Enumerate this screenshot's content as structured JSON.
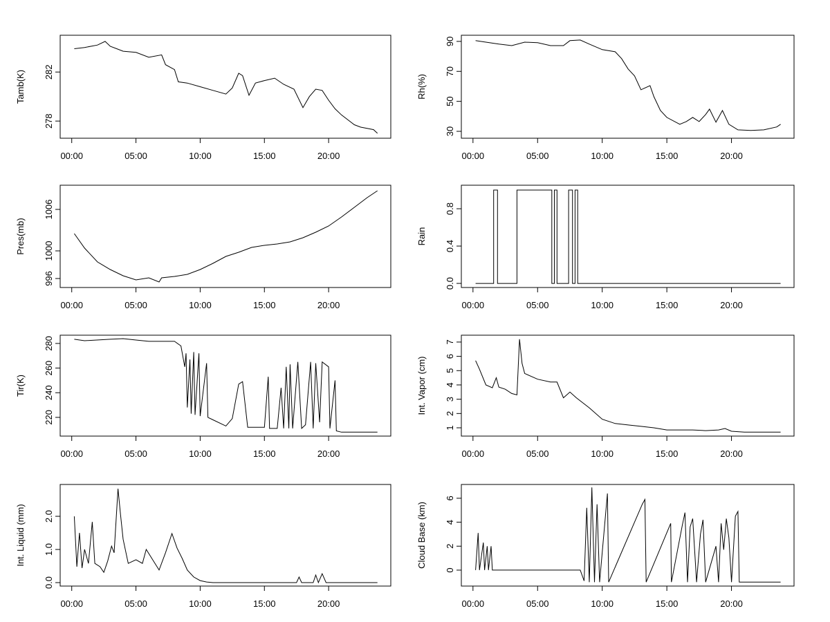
{
  "chart_data": [
    {
      "type": "line",
      "ylabel": "Tamb(K)",
      "xlim": [
        -0.9,
        24.84
      ],
      "ylim": [
        276.6,
        285.0
      ],
      "xticks": [
        {
          "value": 0,
          "label": "00:00"
        },
        {
          "value": 5,
          "label": "05:00"
        },
        {
          "value": 10,
          "label": "10:00"
        },
        {
          "value": 15,
          "label": "15:00"
        },
        {
          "value": 20,
          "label": "20:00"
        }
      ],
      "yticks": [
        278,
        282
      ],
      "color": "#000000",
      "x": [
        0.2,
        1,
        2,
        2.6,
        3,
        3.5,
        4,
        5,
        6,
        7,
        7.3,
        8,
        8.3,
        9,
        10,
        11,
        12,
        12.5,
        13,
        13.3,
        13.8,
        14.3,
        15,
        15.8,
        16.5,
        17.3,
        18,
        18.5,
        19,
        19.5,
        20,
        20.5,
        21,
        22,
        22.5,
        23,
        23.5,
        23.8
      ],
      "values": [
        283.9,
        284.0,
        284.2,
        284.5,
        284.1,
        283.9,
        283.7,
        283.6,
        283.2,
        283.4,
        282.6,
        282.2,
        281.2,
        281.1,
        280.8,
        280.5,
        280.2,
        280.7,
        281.9,
        281.7,
        280.1,
        281.1,
        281.3,
        281.5,
        281.0,
        280.6,
        279.1,
        280.0,
        280.6,
        280.5,
        279.7,
        279.0,
        278.5,
        277.7,
        277.5,
        277.4,
        277.3,
        277.0
      ]
    },
    {
      "type": "line",
      "ylabel": "Rh(%)",
      "xlim": [
        -0.9,
        24.84
      ],
      "ylim": [
        25.4,
        94.1
      ],
      "xticks": [
        {
          "value": 0,
          "label": "00:00"
        },
        {
          "value": 5,
          "label": "05:00"
        },
        {
          "value": 10,
          "label": "10:00"
        },
        {
          "value": 15,
          "label": "15:00"
        },
        {
          "value": 20,
          "label": "20:00"
        }
      ],
      "yticks": [
        30,
        50,
        70,
        90
      ],
      "color": "#000000",
      "x": [
        0.2,
        1,
        2,
        3,
        4,
        5,
        6,
        7,
        7.5,
        8.3,
        9,
        10,
        11,
        11.5,
        12,
        12.5,
        13,
        13.7,
        14,
        14.5,
        15,
        16,
        16.5,
        17,
        17.5,
        18,
        18.3,
        18.8,
        19.3,
        19.8,
        20.5,
        21.5,
        22.5,
        23.5,
        23.8
      ],
      "values": [
        90.5,
        89.5,
        88.2,
        87.2,
        89.5,
        89.1,
        87.2,
        87.2,
        90.5,
        90.9,
        88.2,
        84.5,
        83.1,
        78.5,
        71.6,
        67,
        57.7,
        60.5,
        53.1,
        43.9,
        39.3,
        34.7,
        36.5,
        39.3,
        36.5,
        41.2,
        44.8,
        36.1,
        43.9,
        34.7,
        31,
        30.6,
        31,
        32.9,
        34.7
      ]
    },
    {
      "type": "line",
      "ylabel": "Pres(mb)",
      "xlim": [
        -0.9,
        24.84
      ],
      "ylim": [
        994.7,
        1009.5
      ],
      "xticks": [
        {
          "value": 0,
          "label": "00:00"
        },
        {
          "value": 5,
          "label": "05:00"
        },
        {
          "value": 10,
          "label": "10:00"
        },
        {
          "value": 15,
          "label": "15:00"
        },
        {
          "value": 20,
          "label": "20:00"
        }
      ],
      "yticks": [
        996,
        1000,
        1006
      ],
      "color": "#000000",
      "x": [
        0.2,
        1,
        2,
        3,
        4,
        5,
        6,
        6.8,
        7,
        8,
        9,
        10,
        11,
        12,
        13,
        14,
        15,
        16,
        17,
        18,
        19,
        20,
        21,
        22,
        23,
        23.8
      ],
      "values": [
        1002.5,
        1000.4,
        998.4,
        997.3,
        996.4,
        995.8,
        996.1,
        995.5,
        996.1,
        996.3,
        996.6,
        997.3,
        998.2,
        999.2,
        999.8,
        1000.5,
        1000.8,
        1001.0,
        1001.3,
        1001.9,
        1002.7,
        1003.6,
        1004.9,
        1006.3,
        1007.7,
        1008.7
      ]
    },
    {
      "type": "line",
      "ylabel": "Rain",
      "xlim": [
        -0.9,
        24.84
      ],
      "ylim": [
        -0.044,
        1.052
      ],
      "xticks": [
        {
          "value": 0,
          "label": "00:00"
        },
        {
          "value": 5,
          "label": "05:00"
        },
        {
          "value": 10,
          "label": "10:00"
        },
        {
          "value": 15,
          "label": "15:00"
        },
        {
          "value": 20,
          "label": "20:00"
        }
      ],
      "yticks": [
        {
          "value": 0,
          "label": "0.0"
        },
        0.4,
        0.8
      ],
      "color": "#000000",
      "x": [
        0.2,
        1.6,
        1.6,
        1.9,
        1.9,
        3.4,
        3.4,
        6.1,
        6.1,
        6.3,
        6.3,
        6.5,
        6.5,
        7.4,
        7.4,
        7.7,
        7.7,
        7.9,
        7.9,
        8.1,
        8.1,
        23.8
      ],
      "values": [
        0,
        0,
        1,
        1,
        0,
        0,
        1,
        1,
        0,
        0,
        1,
        1,
        0,
        0,
        1,
        1,
        0,
        0,
        1,
        1,
        0,
        0
      ]
    },
    {
      "type": "line",
      "ylabel": "Tir(K)",
      "xlim": [
        -0.9,
        24.84
      ],
      "ylim": [
        204.8,
        286.7
      ],
      "xticks": [
        {
          "value": 0,
          "label": "00:00"
        },
        {
          "value": 5,
          "label": "05:00"
        },
        {
          "value": 10,
          "label": "10:00"
        },
        {
          "value": 15,
          "label": "15:00"
        },
        {
          "value": 20,
          "label": "20:00"
        }
      ],
      "yticks": [
        220,
        240,
        260,
        280
      ],
      "color": "#000000",
      "x": [
        0.2,
        1,
        3,
        4,
        5,
        6,
        7,
        8,
        8.5,
        8.8,
        8.9,
        9,
        9.2,
        9.3,
        9.5,
        9.6,
        9.9,
        10.0,
        10.5,
        10.6,
        11,
        12,
        12.5,
        13,
        13.3,
        13.7,
        15,
        15.3,
        15.4,
        16,
        16.3,
        16.5,
        16.7,
        16.9,
        17,
        17.2,
        17.6,
        17.9,
        18.2,
        18.6,
        18.8,
        19.0,
        19.3,
        19.5,
        20.0,
        20.1,
        20.5,
        20.6,
        21,
        23.8
      ],
      "values": [
        283.4,
        282.2,
        283.4,
        283.9,
        282.8,
        281.7,
        281.7,
        281.7,
        278,
        261,
        272,
        228,
        267,
        223,
        273,
        222,
        272,
        221,
        264,
        220,
        218,
        213,
        219,
        247,
        249,
        212,
        212,
        253,
        211,
        211,
        244,
        211,
        261,
        211,
        263,
        211,
        265,
        211,
        214,
        265,
        211,
        264,
        216,
        265,
        261,
        211,
        250,
        209,
        208,
        208
      ]
    },
    {
      "type": "line",
      "ylabel": "Int. Vapor (cm)",
      "xlim": [
        -0.9,
        24.84
      ],
      "ylim": [
        0.42,
        7.48
      ],
      "xticks": [
        {
          "value": 0,
          "label": "00:00"
        },
        {
          "value": 5,
          "label": "05:00"
        },
        {
          "value": 10,
          "label": "10:00"
        },
        {
          "value": 15,
          "label": "15:00"
        },
        {
          "value": 20,
          "label": "20:00"
        }
      ],
      "yticks": [
        1,
        2,
        3,
        4,
        5,
        6,
        7
      ],
      "color": "#000000",
      "x": [
        0.2,
        0.5,
        1,
        1.5,
        1.8,
        2,
        2.5,
        3,
        3.4,
        3.6,
        3.8,
        4,
        5,
        6,
        6.5,
        7,
        7.5,
        8,
        9,
        10,
        11,
        12,
        13,
        14,
        15,
        16,
        17,
        18,
        19,
        19.5,
        20,
        21,
        23.8
      ],
      "values": [
        5.7,
        5.1,
        4.0,
        3.8,
        4.5,
        3.85,
        3.7,
        3.4,
        3.3,
        7.2,
        5.5,
        4.8,
        4.4,
        4.2,
        4.2,
        3.1,
        3.5,
        3.1,
        2.4,
        1.6,
        1.3,
        1.2,
        1.1,
        1.0,
        0.85,
        0.85,
        0.85,
        0.8,
        0.85,
        0.95,
        0.76,
        0.7,
        0.7
      ]
    },
    {
      "type": "line",
      "ylabel": "Int. Liquid (mm)",
      "xlim": [
        -0.9,
        24.84
      ],
      "ylim": [
        -0.104,
        2.96
      ],
      "xticks": [
        {
          "value": 0,
          "label": "00:00"
        },
        {
          "value": 5,
          "label": "05:00"
        },
        {
          "value": 10,
          "label": "10:00"
        },
        {
          "value": 15,
          "label": "15:00"
        },
        {
          "value": 20,
          "label": "20:00"
        }
      ],
      "yticks": [
        {
          "value": 0,
          "label": "0.0"
        },
        {
          "value": 1,
          "label": "1.0"
        },
        {
          "value": 2,
          "label": "2.0"
        }
      ],
      "color": "#000000",
      "x": [
        0.2,
        0.4,
        0.6,
        0.8,
        1.0,
        1.3,
        1.6,
        1.8,
        2.2,
        2.5,
        2.8,
        3.1,
        3.3,
        3.6,
        3.8,
        4.0,
        4.4,
        5,
        5.5,
        5.8,
        6.3,
        6.8,
        7.3,
        7.8,
        8.2,
        8.6,
        9,
        9.5,
        10,
        10.5,
        11,
        17.5,
        17.7,
        17.9,
        18.8,
        19,
        19.2,
        19.5,
        19.8,
        23.8
      ],
      "values": [
        2.0,
        0.48,
        1.5,
        0.44,
        1.0,
        0.58,
        1.83,
        0.58,
        0.48,
        0.31,
        0.65,
        1.1,
        0.9,
        2.83,
        2.04,
        1.31,
        0.58,
        0.69,
        0.58,
        1.0,
        0.69,
        0.38,
        0.9,
        1.48,
        1.04,
        0.73,
        0.38,
        0.17,
        0.06,
        0.02,
        0,
        0,
        0.17,
        0,
        0,
        0.23,
        0,
        0.27,
        0,
        0
      ]
    },
    {
      "type": "line",
      "ylabel": "Cloud Base (km)",
      "xlim": [
        -0.9,
        24.84
      ],
      "ylim": [
        -1.33,
        7.15
      ],
      "xticks": [
        {
          "value": 0,
          "label": "00:00"
        },
        {
          "value": 5,
          "label": "05:00"
        },
        {
          "value": 10,
          "label": "10:00"
        },
        {
          "value": 15,
          "label": "15:00"
        },
        {
          "value": 20,
          "label": "20:00"
        }
      ],
      "yticks": [
        0,
        2,
        4,
        6
      ],
      "color": "#000000",
      "x": [
        0.2,
        0.4,
        0.5,
        0.8,
        0.9,
        1.1,
        1.2,
        1.4,
        1.5,
        3,
        5,
        7,
        8.3,
        8.6,
        8.8,
        9.0,
        9.2,
        9.4,
        9.6,
        9.8,
        10.4,
        10.5,
        13.1,
        13.3,
        13.4,
        15.3,
        15.35,
        16.2,
        16.4,
        16.6,
        16.8,
        17,
        17.3,
        17.6,
        17.8,
        18,
        18.8,
        19,
        19.2,
        19.4,
        19.6,
        19.8,
        20,
        20.3,
        20.5,
        20.6,
        23.8
      ],
      "values": [
        0,
        3.1,
        0,
        2.3,
        0,
        2.0,
        0,
        2.0,
        0,
        0,
        0,
        0,
        0,
        -0.9,
        5.2,
        -1,
        6.9,
        -1,
        5.5,
        -1,
        6.4,
        -1,
        5.5,
        5.9,
        -1,
        3.9,
        -1,
        3.75,
        4.8,
        -1,
        3.6,
        4.3,
        -1,
        3.0,
        4.2,
        -1,
        2.0,
        -1,
        3.9,
        1.7,
        4.3,
        2.7,
        -1,
        4.5,
        4.9,
        -1,
        -1
      ]
    }
  ]
}
